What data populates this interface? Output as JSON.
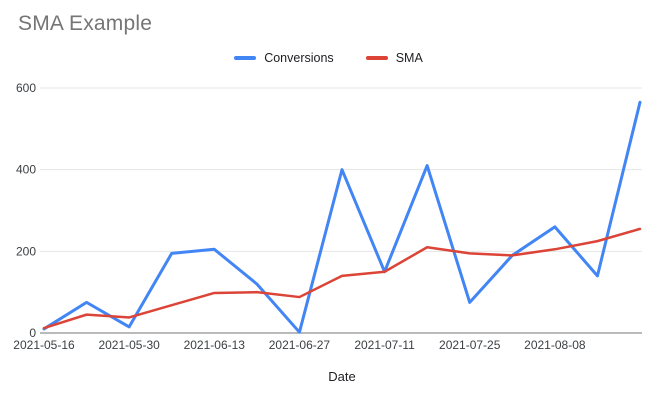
{
  "chart_data": {
    "type": "line",
    "title": "SMA Example",
    "xlabel": "Date",
    "ylabel": "",
    "ylim": [
      0,
      600
    ],
    "yticks": [
      0,
      200,
      400,
      600
    ],
    "grid": true,
    "legend_position": "top-center",
    "x": [
      "2021-05-16",
      "2021-05-23",
      "2021-05-30",
      "2021-06-06",
      "2021-06-13",
      "2021-06-20",
      "2021-06-27",
      "2021-07-04",
      "2021-07-11",
      "2021-07-18",
      "2021-07-25",
      "2021-08-01",
      "2021-08-08",
      "2021-08-15",
      "2021-08-22"
    ],
    "xtick_labels": [
      "2021-05-16",
      "2021-05-30",
      "2021-06-13",
      "2021-06-27",
      "2021-07-11",
      "2021-07-25",
      "2021-08-08"
    ],
    "series": [
      {
        "name": "Conversions",
        "color": "#4285f4",
        "values": [
          10,
          75,
          15,
          195,
          205,
          120,
          2,
          400,
          150,
          410,
          75,
          190,
          260,
          140,
          565
        ]
      },
      {
        "name": "SMA",
        "color": "#db4437",
        "values": [
          12,
          45,
          38,
          68,
          98,
          100,
          88,
          140,
          150,
          210,
          195,
          190,
          205,
          225,
          255
        ]
      }
    ]
  },
  "colors": {
    "title_text": "#757575",
    "tick_text": "#3c4043",
    "gridline": "#e6e6e6",
    "axis_line": "#757575",
    "background": "#ffffff"
  }
}
